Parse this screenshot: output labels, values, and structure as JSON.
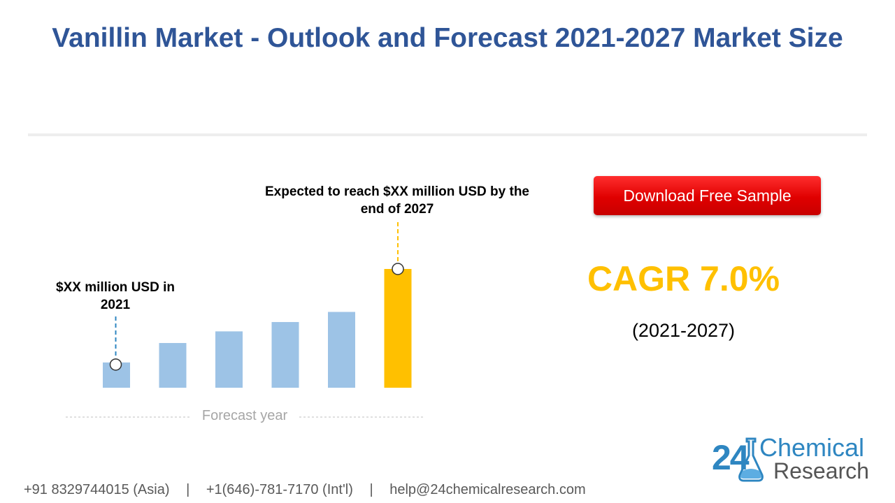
{
  "page": {
    "title": "Vanillin Market - Outlook and Forecast 2021-2027 Market Size"
  },
  "chart_data": {
    "type": "bar",
    "categories": [
      "",
      "",
      "",
      "",
      "",
      ""
    ],
    "values": [
      1.0,
      1.77,
      2.23,
      2.6,
      3.0,
      4.7
    ],
    "xlabel": "Forecast year",
    "annotations": {
      "start": "$XX million USD in 2021",
      "end": "Expected to reach $XX million USD by the end of 2027"
    },
    "colors": {
      "base": "#9dc3e6",
      "highlight": "#ffc000"
    },
    "highlight_index": 5,
    "grid": false
  },
  "cta": {
    "download_label": "Download Free Sample"
  },
  "cagr": {
    "label": "CAGR 7.0%",
    "period": "(2021-2027)"
  },
  "logo": {
    "number": "24",
    "line1": "Chemical",
    "line2": "Research"
  },
  "footer": {
    "phone_asia": "+91 8329744015 (Asia)",
    "separator": "|",
    "phone_intl": "+1(646)-781-7170 (Int'l)",
    "email": "help@24chemicalresearch.com"
  }
}
